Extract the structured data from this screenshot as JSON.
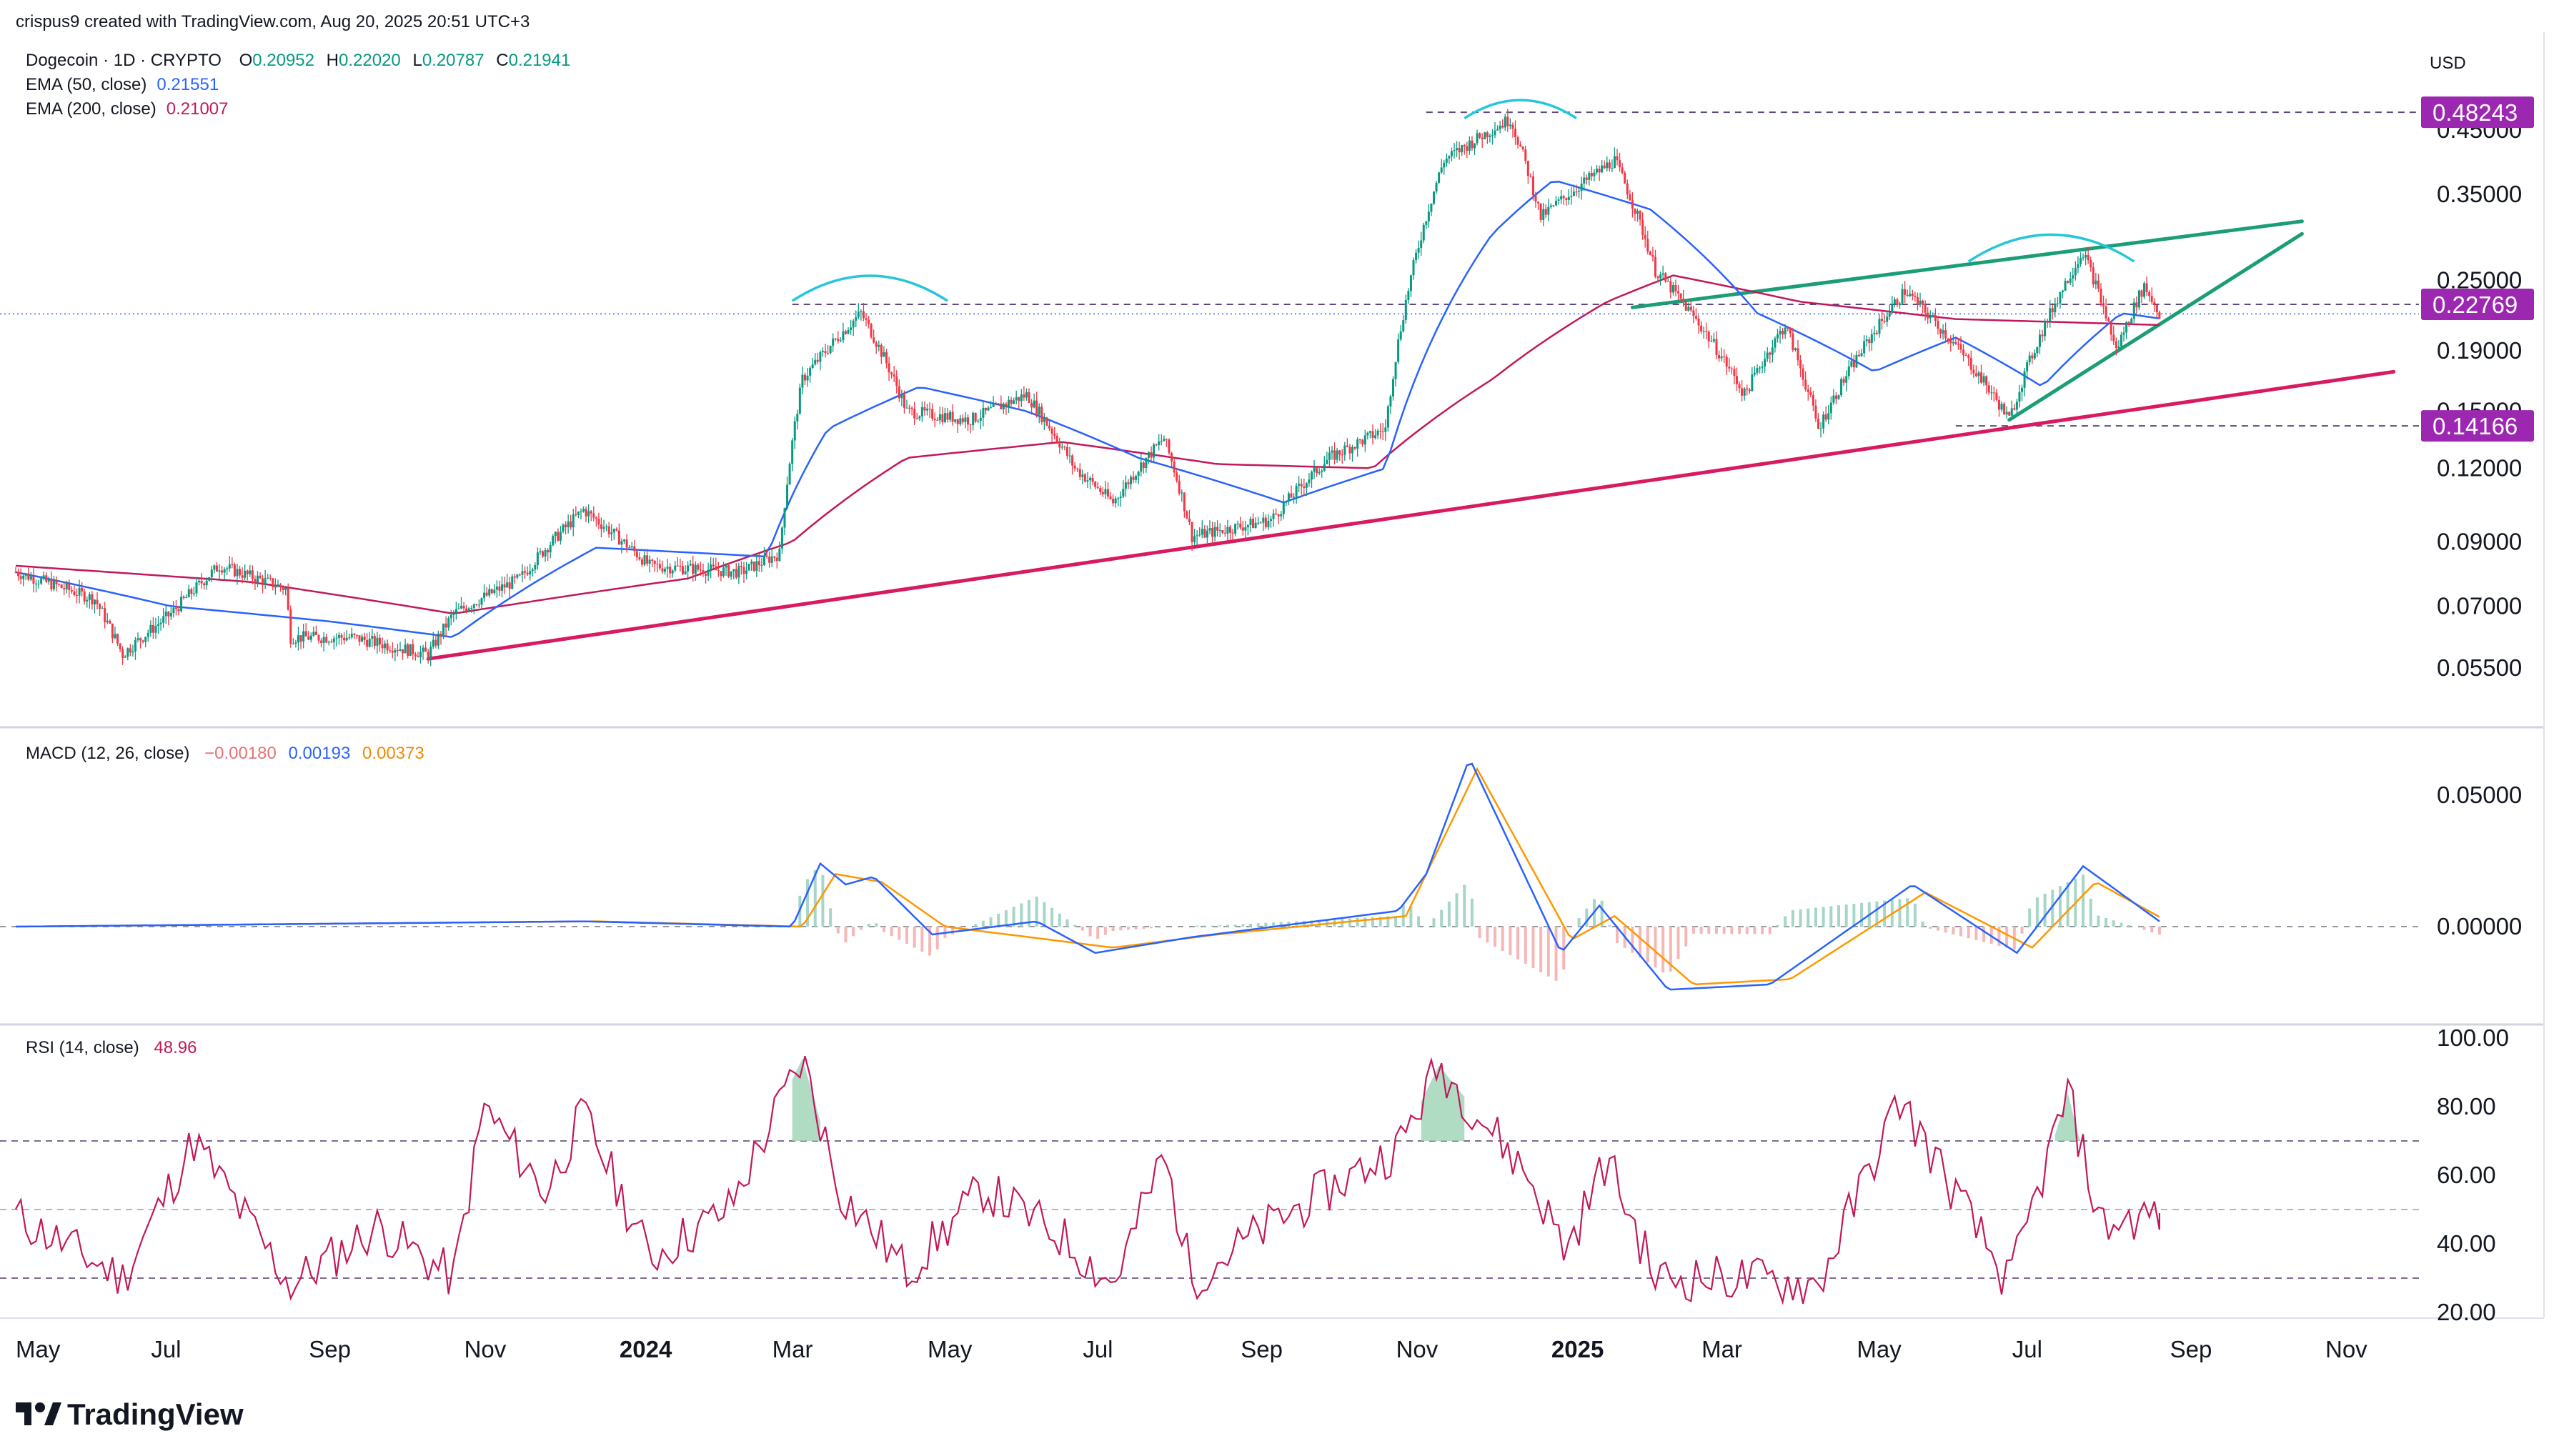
{
  "header": {
    "credit": "crispus9 created with TradingView.com, Aug 20, 2025 20:51 UTC+3",
    "symbol": "Dogecoin · 1D · CRYPTO",
    "ohlc": {
      "o_label": "O",
      "o": "0.20952",
      "h_label": "H",
      "h": "0.22020",
      "l_label": "L",
      "l": "0.20787",
      "c_label": "C",
      "c": "0.21941"
    },
    "ema50": {
      "label": "EMA (50, close)",
      "value": "0.21551",
      "color": "#2962ff"
    },
    "ema200": {
      "label": "EMA (200, close)",
      "value": "0.21007",
      "color": "#c2185b"
    }
  },
  "currency": "USD",
  "price_scale": {
    "ticks": [
      "0.45000",
      "0.35000",
      "0.25000",
      "0.19000",
      "0.15000",
      "0.12000",
      "0.09000",
      "0.07000",
      "0.05500"
    ],
    "tags": [
      {
        "label": "0.48243",
        "color": "#9c27b0"
      },
      {
        "label": "0.22769",
        "color": "#9c27b0"
      },
      {
        "label": "0.14166",
        "color": "#9c27b0"
      }
    ]
  },
  "macd": {
    "label": "MACD (12, 26, close)",
    "hist": "−0.00180",
    "macd": "0.00193",
    "signal": "0.00373",
    "colors": {
      "hist": "#ef5350",
      "macd": "#2962ff",
      "signal": "#ff9800"
    },
    "ticks": [
      "0.05000",
      "0.00000"
    ]
  },
  "rsi": {
    "label": "RSI (14, close)",
    "value": "48.96",
    "color": "#c2185b",
    "ticks": [
      "100.00",
      "80.00",
      "60.00",
      "40.00",
      "20.00"
    ]
  },
  "time_axis": {
    "labels": [
      "May",
      "Jul",
      "Sep",
      "Nov",
      "2024",
      "Mar",
      "May",
      "Jul",
      "Sep",
      "Nov",
      "2025",
      "Mar",
      "May",
      "Jul",
      "Sep",
      "Nov"
    ],
    "bold": [
      "2024",
      "2025"
    ]
  },
  "footer": {
    "brand": "TradingView"
  },
  "chart_data": {
    "type": "candlestick",
    "scale": "log",
    "instrument": "Dogecoin 1D",
    "currency": "USD",
    "ylim": [
      0.05,
      0.55
    ],
    "x_range": [
      "2023-05",
      "2025-11"
    ],
    "levels": {
      "high_resistance": 0.48243,
      "mid_resistance": 0.22769,
      "support": 0.14166
    },
    "price_path": [
      {
        "x": "2023-05-01",
        "y": 0.08
      },
      {
        "x": "2023-06-01",
        "y": 0.072
      },
      {
        "x": "2023-06-12",
        "y": 0.058
      },
      {
        "x": "2023-07-01",
        "y": 0.068
      },
      {
        "x": "2023-07-20",
        "y": 0.082
      },
      {
        "x": "2023-08-15",
        "y": 0.075
      },
      {
        "x": "2023-08-17",
        "y": 0.062
      },
      {
        "x": "2023-09-10",
        "y": 0.062
      },
      {
        "x": "2023-10-10",
        "y": 0.058
      },
      {
        "x": "2023-10-20",
        "y": 0.068
      },
      {
        "x": "2023-11-15",
        "y": 0.078
      },
      {
        "x": "2023-12-10",
        "y": 0.102
      },
      {
        "x": "2024-01-05",
        "y": 0.082
      },
      {
        "x": "2024-02-10",
        "y": 0.08
      },
      {
        "x": "2024-02-25",
        "y": 0.086
      },
      {
        "x": "2024-03-05",
        "y": 0.17
      },
      {
        "x": "2024-03-28",
        "y": 0.22
      },
      {
        "x": "2024-04-15",
        "y": 0.15
      },
      {
        "x": "2024-05-10",
        "y": 0.145
      },
      {
        "x": "2024-06-01",
        "y": 0.16
      },
      {
        "x": "2024-06-20",
        "y": 0.12
      },
      {
        "x": "2024-07-05",
        "y": 0.105
      },
      {
        "x": "2024-07-25",
        "y": 0.135
      },
      {
        "x": "2024-08-05",
        "y": 0.092
      },
      {
        "x": "2024-09-05",
        "y": 0.098
      },
      {
        "x": "2024-09-28",
        "y": 0.125
      },
      {
        "x": "2024-10-20",
        "y": 0.14
      },
      {
        "x": "2024-11-12",
        "y": 0.4
      },
      {
        "x": "2024-12-08",
        "y": 0.47
      },
      {
        "x": "2024-12-20",
        "y": 0.32
      },
      {
        "x": "2025-01-18",
        "y": 0.4
      },
      {
        "x": "2025-02-03",
        "y": 0.26
      },
      {
        "x": "2025-03-10",
        "y": 0.16
      },
      {
        "x": "2025-03-26",
        "y": 0.21
      },
      {
        "x": "2025-04-08",
        "y": 0.14
      },
      {
        "x": "2025-05-12",
        "y": 0.24
      },
      {
        "x": "2025-06-22",
        "y": 0.145
      },
      {
        "x": "2025-07-21",
        "y": 0.28
      },
      {
        "x": "2025-08-03",
        "y": 0.19
      },
      {
        "x": "2025-08-14",
        "y": 0.245
      },
      {
        "x": "2025-08-20",
        "y": 0.219
      }
    ],
    "ema50_path": [
      {
        "x": "2023-05-01",
        "y": 0.08
      },
      {
        "x": "2023-07-01",
        "y": 0.07
      },
      {
        "x": "2023-09-01",
        "y": 0.066
      },
      {
        "x": "2023-10-20",
        "y": 0.062
      },
      {
        "x": "2023-12-15",
        "y": 0.088
      },
      {
        "x": "2024-02-20",
        "y": 0.085
      },
      {
        "x": "2024-03-15",
        "y": 0.14
      },
      {
        "x": "2024-04-20",
        "y": 0.165
      },
      {
        "x": "2024-06-01",
        "y": 0.15
      },
      {
        "x": "2024-07-15",
        "y": 0.125
      },
      {
        "x": "2024-09-10",
        "y": 0.105
      },
      {
        "x": "2024-10-20",
        "y": 0.12
      },
      {
        "x": "2024-12-01",
        "y": 0.3
      },
      {
        "x": "2024-12-25",
        "y": 0.37
      },
      {
        "x": "2025-02-01",
        "y": 0.33
      },
      {
        "x": "2025-03-15",
        "y": 0.22
      },
      {
        "x": "2025-04-30",
        "y": 0.175
      },
      {
        "x": "2025-06-01",
        "y": 0.2
      },
      {
        "x": "2025-07-05",
        "y": 0.165
      },
      {
        "x": "2025-08-05",
        "y": 0.22
      },
      {
        "x": "2025-08-20",
        "y": 0.21551
      }
    ],
    "ema200_path": [
      {
        "x": "2023-05-01",
        "y": 0.082
      },
      {
        "x": "2023-08-01",
        "y": 0.077
      },
      {
        "x": "2023-10-20",
        "y": 0.068
      },
      {
        "x": "2024-01-20",
        "y": 0.078
      },
      {
        "x": "2024-03-01",
        "y": 0.09
      },
      {
        "x": "2024-04-15",
        "y": 0.125
      },
      {
        "x": "2024-06-15",
        "y": 0.133
      },
      {
        "x": "2024-08-15",
        "y": 0.122
      },
      {
        "x": "2024-10-15",
        "y": 0.12
      },
      {
        "x": "2024-12-01",
        "y": 0.17
      },
      {
        "x": "2025-01-15",
        "y": 0.23
      },
      {
        "x": "2025-02-10",
        "y": 0.255
      },
      {
        "x": "2025-04-01",
        "y": 0.23
      },
      {
        "x": "2025-06-01",
        "y": 0.215
      },
      {
        "x": "2025-08-20",
        "y": 0.21007
      }
    ],
    "trendlines": [
      {
        "name": "support",
        "color": "#d81b60",
        "from": {
          "x": "2023-10-10",
          "y": 0.057
        },
        "to": {
          "x": "2025-11-20",
          "y": 0.175
        }
      },
      {
        "name": "wedge_upper",
        "color": "#1b9e77",
        "from": {
          "x": "2025-01-25",
          "y": 0.225
        },
        "to": {
          "x": "2025-10-15",
          "y": 0.315
        }
      },
      {
        "name": "wedge_lower",
        "color": "#1b9e77",
        "from": {
          "x": "2025-06-22",
          "y": 0.145
        },
        "to": {
          "x": "2025-10-15",
          "y": 0.3
        }
      }
    ],
    "arcs": [
      {
        "color": "#26c6da",
        "from": "2024-03-01",
        "to": "2024-05-01",
        "y": 0.24
      },
      {
        "color": "#26c6da",
        "from": "2024-11-20",
        "to": "2025-01-03",
        "y": 0.49
      },
      {
        "color": "#26c6da",
        "from": "2025-06-06",
        "to": "2025-08-10",
        "y": 0.28
      }
    ],
    "macd_path": [
      {
        "x": "2023-05-01",
        "y": 0.0
      },
      {
        "x": "2023-12-10",
        "y": 0.002
      },
      {
        "x": "2024-03-01",
        "y": 0.0
      },
      {
        "x": "2024-03-12",
        "y": 0.024
      },
      {
        "x": "2024-03-22",
        "y": 0.016
      },
      {
        "x": "2024-04-02",
        "y": 0.019
      },
      {
        "x": "2024-04-25",
        "y": -0.003
      },
      {
        "x": "2024-06-05",
        "y": 0.002
      },
      {
        "x": "2024-06-28",
        "y": -0.01
      },
      {
        "x": "2024-08-05",
        "y": -0.004
      },
      {
        "x": "2024-10-25",
        "y": 0.006
      },
      {
        "x": "2024-11-05",
        "y": 0.02
      },
      {
        "x": "2024-11-22",
        "y": 0.064
      },
      {
        "x": "2024-12-28",
        "y": -0.01
      },
      {
        "x": "2025-01-12",
        "y": 0.008
      },
      {
        "x": "2025-02-08",
        "y": -0.024
      },
      {
        "x": "2025-03-20",
        "y": -0.022
      },
      {
        "x": "2025-05-15",
        "y": 0.016
      },
      {
        "x": "2025-06-25",
        "y": -0.01
      },
      {
        "x": "2025-07-21",
        "y": 0.023
      },
      {
        "x": "2025-08-20",
        "y": 0.002
      }
    ],
    "signal_path": [
      {
        "x": "2023-05-01",
        "y": 0.0
      },
      {
        "x": "2023-12-15",
        "y": 0.002
      },
      {
        "x": "2024-03-05",
        "y": 0.0
      },
      {
        "x": "2024-03-18",
        "y": 0.02
      },
      {
        "x": "2024-04-05",
        "y": 0.017
      },
      {
        "x": "2024-04-30",
        "y": 0.0
      },
      {
        "x": "2024-07-05",
        "y": -0.008
      },
      {
        "x": "2024-08-15",
        "y": -0.003
      },
      {
        "x": "2024-10-28",
        "y": 0.004
      },
      {
        "x": "2024-11-25",
        "y": 0.06
      },
      {
        "x": "2025-01-01",
        "y": -0.005
      },
      {
        "x": "2025-01-18",
        "y": 0.004
      },
      {
        "x": "2025-02-18",
        "y": -0.022
      },
      {
        "x": "2025-03-28",
        "y": -0.02
      },
      {
        "x": "2025-05-20",
        "y": 0.013
      },
      {
        "x": "2025-07-01",
        "y": -0.008
      },
      {
        "x": "2025-07-26",
        "y": 0.017
      },
      {
        "x": "2025-08-20",
        "y": 0.0037
      }
    ],
    "rsi_path": [
      {
        "x": "2023-05-01",
        "y": 48
      },
      {
        "x": "2023-06-12",
        "y": 30
      },
      {
        "x": "2023-07-10",
        "y": 70
      },
      {
        "x": "2023-08-17",
        "y": 28
      },
      {
        "x": "2023-09-20",
        "y": 45
      },
      {
        "x": "2023-10-20",
        "y": 30
      },
      {
        "x": "2023-11-01",
        "y": 80
      },
      {
        "x": "2023-11-25",
        "y": 55
      },
      {
        "x": "2023-12-10",
        "y": 78
      },
      {
        "x": "2024-01-05",
        "y": 36
      },
      {
        "x": "2024-02-05",
        "y": 50
      },
      {
        "x": "2024-03-05",
        "y": 94
      },
      {
        "x": "2024-03-20",
        "y": 55
      },
      {
        "x": "2024-04-15",
        "y": 32
      },
      {
        "x": "2024-05-15",
        "y": 56
      },
      {
        "x": "2024-06-15",
        "y": 42
      },
      {
        "x": "2024-07-05",
        "y": 28
      },
      {
        "x": "2024-07-25",
        "y": 66
      },
      {
        "x": "2024-08-05",
        "y": 30
      },
      {
        "x": "2024-09-10",
        "y": 48
      },
      {
        "x": "2024-10-25",
        "y": 68
      },
      {
        "x": "2024-11-10",
        "y": 92
      },
      {
        "x": "2024-12-15",
        "y": 60
      },
      {
        "x": "2024-12-30",
        "y": 38
      },
      {
        "x": "2025-01-15",
        "y": 65
      },
      {
        "x": "2025-02-03",
        "y": 30
      },
      {
        "x": "2025-03-10",
        "y": 30
      },
      {
        "x": "2025-04-08",
        "y": 28
      },
      {
        "x": "2025-05-10",
        "y": 82
      },
      {
        "x": "2025-06-22",
        "y": 28
      },
      {
        "x": "2025-07-15",
        "y": 84
      },
      {
        "x": "2025-07-28",
        "y": 45
      },
      {
        "x": "2025-08-20",
        "y": 48.96
      }
    ],
    "rsi_levels": [
      70,
      50,
      30
    ]
  }
}
